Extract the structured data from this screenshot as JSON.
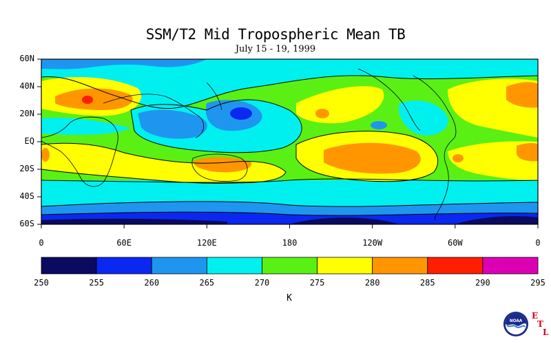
{
  "title": "SSM/T2 Mid Tropospheric Mean TB",
  "subtitle": "July 15 - 19, 1999",
  "lat_labels": [
    "60N",
    "40N",
    "20N",
    "EQ",
    "20S",
    "40S",
    "60S"
  ],
  "lon_labels": [
    "0",
    "60E",
    "120E",
    "180",
    "120W",
    "60W",
    "0"
  ],
  "colorbar": {
    "bins": [
      {
        "from": 250,
        "to": 255,
        "color": "#0a0a60"
      },
      {
        "from": 255,
        "to": 260,
        "color": "#0a28f0"
      },
      {
        "from": 260,
        "to": 265,
        "color": "#1e96f0"
      },
      {
        "from": 265,
        "to": 270,
        "color": "#00f0f0"
      },
      {
        "from": 270,
        "to": 275,
        "color": "#5af014"
      },
      {
        "from": 275,
        "to": 280,
        "color": "#ffff00"
      },
      {
        "from": 280,
        "to": 285,
        "color": "#ff9600"
      },
      {
        "from": 285,
        "to": 290,
        "color": "#ff1e00"
      },
      {
        "from": 290,
        "to": 295,
        "color": "#dc00b4"
      }
    ],
    "tick_labels": [
      "250",
      "255",
      "260",
      "265",
      "270",
      "275",
      "280",
      "285",
      "290",
      "295"
    ],
    "unit": "K"
  },
  "logos": {
    "noaa_text": "NOAA",
    "etl_letters": [
      "E",
      "T",
      "L"
    ]
  }
}
